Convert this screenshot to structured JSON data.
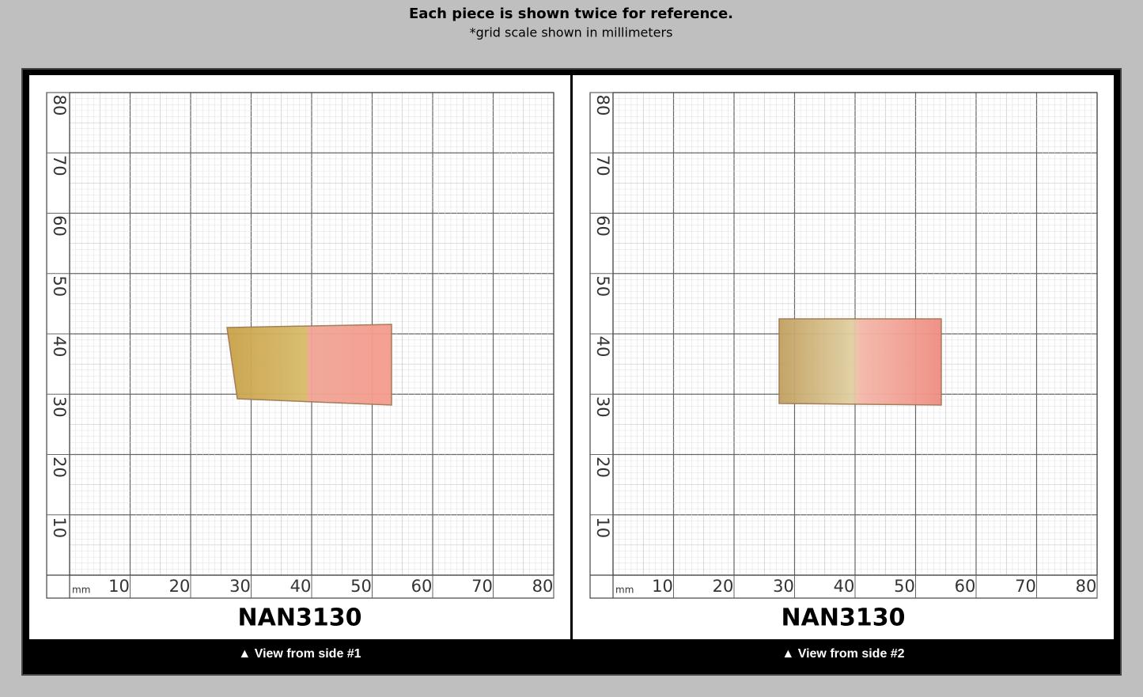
{
  "header": {
    "title": "Each piece is shown twice for reference.",
    "note": "*grid scale shown in millimeters"
  },
  "panels": [
    {
      "grid": {
        "unit": "mm",
        "x_labels": [
          10,
          20,
          30,
          40,
          50,
          60,
          70,
          80
        ],
        "y_labels": [
          80,
          70,
          60,
          50,
          40,
          30,
          20,
          10
        ]
      },
      "code": "NAN3130",
      "caption": "▲ View from side #1"
    },
    {
      "grid": {
        "unit": "mm",
        "x_labels": [
          10,
          20,
          30,
          40,
          50,
          60,
          70,
          80
        ],
        "y_labels": [
          80,
          70,
          60,
          50,
          40,
          30,
          20,
          10
        ]
      },
      "code": "NAN3130",
      "caption": "▲ View from side #2"
    }
  ]
}
